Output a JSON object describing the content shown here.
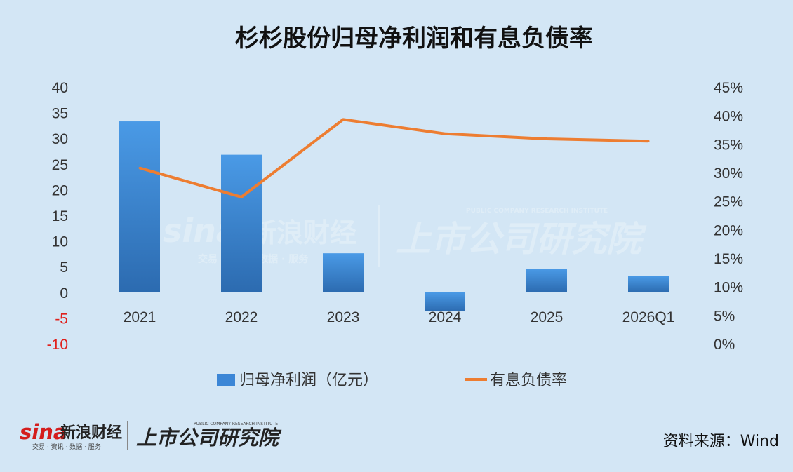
{
  "chart_data": {
    "type": "bar",
    "title": "杉杉股份归母净利润和有息负债率",
    "categories": [
      "2021",
      "2022",
      "2023",
      "2024",
      "2025",
      "2026Q1"
    ],
    "series": [
      {
        "name": "归母净利润（亿元）",
        "type": "bar",
        "axis": "left",
        "color": "#3b86d6",
        "values": [
          33.3,
          26.8,
          7.6,
          -3.7,
          4.6,
          3.2
        ]
      },
      {
        "name": "有息负债率",
        "type": "line",
        "axis": "right",
        "color": "#ed7d31",
        "values": [
          30.8,
          25.7,
          39.3,
          36.8,
          35.9,
          35.5
        ]
      }
    ],
    "y_left": {
      "ticks": [
        "40",
        "35",
        "30",
        "25",
        "20",
        "15",
        "10",
        "5",
        "0",
        "-5",
        "-10"
      ],
      "ylim": [
        -10,
        40
      ],
      "negative_color": "#e0201c"
    },
    "y_right": {
      "ticks": [
        "45%",
        "40%",
        "35%",
        "30%",
        "25%",
        "20%",
        "15%",
        "10%",
        "5%",
        "0%"
      ],
      "ylim": [
        0,
        45
      ]
    },
    "grid": false,
    "legend_position": "bottom"
  },
  "source_note": "资料来源：Wind",
  "watermark": {
    "sina_logo": "sina",
    "sina_name": "新浪财经",
    "sina_sub": "交易 · 资讯 · 数据 · 服务",
    "institute_name": "上市公司研究院",
    "institute_en": "PUBLIC COMPANY RESEARCH INSTITUTE"
  },
  "colors": {
    "background": "#d3e6f5",
    "bar": "#3b86d6",
    "line": "#ed7d31"
  }
}
